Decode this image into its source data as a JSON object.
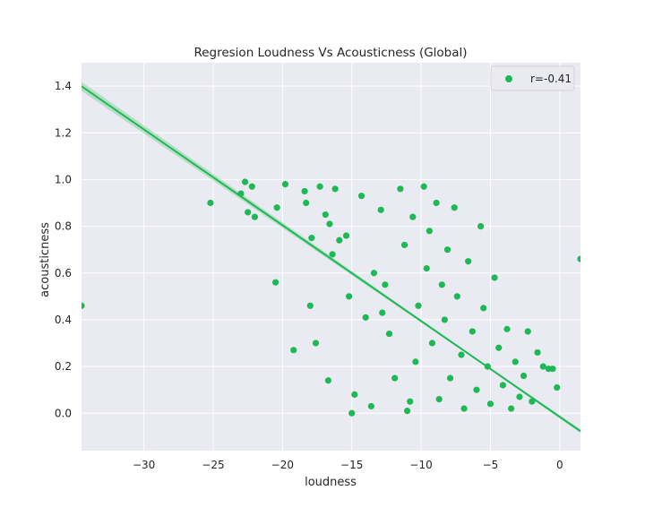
{
  "chart_data": {
    "type": "scatter",
    "title": "Regresion Loudness Vs Acousticness (Global)",
    "xlabel": "loudness",
    "ylabel": "acousticness",
    "xlim": [
      -34.5,
      1.5
    ],
    "ylim": [
      -0.16,
      1.5
    ],
    "x_ticks": [
      -30,
      -25,
      -20,
      -15,
      -10,
      -5,
      0
    ],
    "x_tick_labels": [
      "−30",
      "−25",
      "−20",
      "−15",
      "−10",
      "−5",
      "0"
    ],
    "y_ticks": [
      0.0,
      0.2,
      0.4,
      0.6,
      0.8,
      1.0,
      1.2,
      1.4
    ],
    "y_tick_labels": [
      "0.0",
      "0.2",
      "0.4",
      "0.6",
      "0.8",
      "1.0",
      "1.2",
      "1.4"
    ],
    "grid": true,
    "legend_position": "top-right",
    "colors": {
      "points": "#1db954",
      "line": "#1db954",
      "band": "#9fd9b4",
      "plot_bg": "#eaeaf2",
      "grid": "#ffffff"
    },
    "series": [
      {
        "name": "r=-0.41",
        "points": [
          [
            -34.5,
            0.46
          ],
          [
            -25.2,
            0.9
          ],
          [
            -23.0,
            0.94
          ],
          [
            -22.7,
            0.99
          ],
          [
            -22.5,
            0.86
          ],
          [
            -22.2,
            0.97
          ],
          [
            -22.0,
            0.84
          ],
          [
            -20.5,
            0.56
          ],
          [
            -20.4,
            0.88
          ],
          [
            -19.8,
            0.98
          ],
          [
            -19.2,
            0.27
          ],
          [
            -18.4,
            0.95
          ],
          [
            -18.3,
            0.9
          ],
          [
            -18.0,
            0.46
          ],
          [
            -17.9,
            0.75
          ],
          [
            -17.6,
            0.3
          ],
          [
            -17.3,
            0.97
          ],
          [
            -16.9,
            0.85
          ],
          [
            -16.7,
            0.14
          ],
          [
            -16.6,
            0.81
          ],
          [
            -16.4,
            0.68
          ],
          [
            -16.2,
            0.96
          ],
          [
            -15.9,
            0.74
          ],
          [
            -15.4,
            0.76
          ],
          [
            -15.2,
            0.5
          ],
          [
            -15.0,
            0.0
          ],
          [
            -14.8,
            0.08
          ],
          [
            -14.3,
            0.93
          ],
          [
            -14.0,
            0.41
          ],
          [
            -13.6,
            0.03
          ],
          [
            -13.4,
            0.6
          ],
          [
            -12.9,
            0.87
          ],
          [
            -12.8,
            0.43
          ],
          [
            -12.6,
            0.55
          ],
          [
            -12.3,
            0.34
          ],
          [
            -11.9,
            0.15
          ],
          [
            -11.5,
            0.96
          ],
          [
            -11.2,
            0.72
          ],
          [
            -11.0,
            0.01
          ],
          [
            -10.8,
            0.05
          ],
          [
            -10.6,
            0.84
          ],
          [
            -10.4,
            0.22
          ],
          [
            -10.2,
            0.46
          ],
          [
            -9.8,
            0.97
          ],
          [
            -9.6,
            0.62
          ],
          [
            -9.4,
            0.78
          ],
          [
            -9.2,
            0.3
          ],
          [
            -8.9,
            0.9
          ],
          [
            -8.7,
            0.06
          ],
          [
            -8.5,
            0.55
          ],
          [
            -8.3,
            0.4
          ],
          [
            -8.1,
            0.7
          ],
          [
            -7.9,
            0.15
          ],
          [
            -7.6,
            0.88
          ],
          [
            -7.4,
            0.5
          ],
          [
            -7.1,
            0.25
          ],
          [
            -6.9,
            0.02
          ],
          [
            -6.6,
            0.65
          ],
          [
            -6.3,
            0.35
          ],
          [
            -6.0,
            0.1
          ],
          [
            -5.7,
            0.8
          ],
          [
            -5.5,
            0.45
          ],
          [
            -5.2,
            0.2
          ],
          [
            -5.0,
            0.04
          ],
          [
            -4.7,
            0.58
          ],
          [
            -4.4,
            0.28
          ],
          [
            -4.1,
            0.12
          ],
          [
            -3.8,
            0.36
          ],
          [
            -3.5,
            0.02
          ],
          [
            -3.2,
            0.22
          ],
          [
            -2.9,
            0.07
          ],
          [
            -2.6,
            0.16
          ],
          [
            -2.3,
            0.35
          ],
          [
            -2.0,
            0.05
          ],
          [
            -1.6,
            0.26
          ],
          [
            -1.2,
            0.2
          ],
          [
            -0.8,
            0.19
          ],
          [
            -0.5,
            0.19
          ],
          [
            -0.2,
            0.11
          ],
          [
            1.5,
            0.66
          ]
        ]
      }
    ],
    "regression": {
      "slope": -0.041,
      "intercept": -0.0155,
      "x_range": [
        -34.5,
        1.5
      ]
    }
  }
}
